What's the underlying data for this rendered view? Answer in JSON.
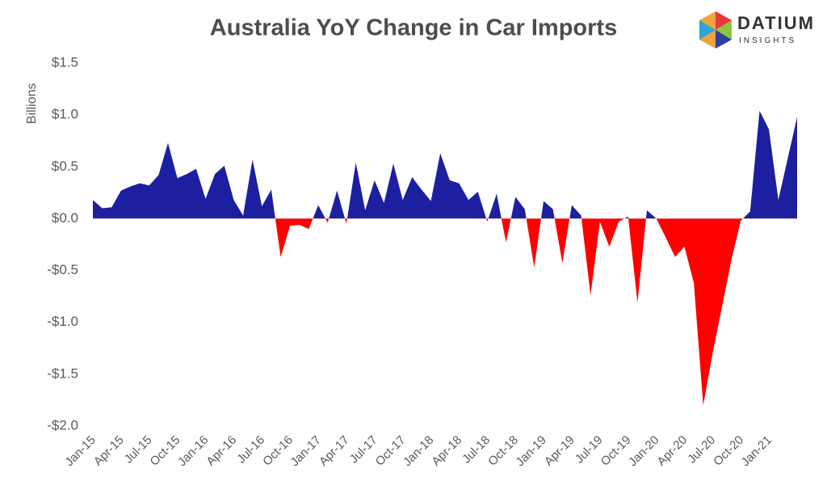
{
  "chart_data": {
    "type": "area",
    "title": "Australia YoY Change in Car Imports",
    "y_label": "Billions",
    "logo": {
      "name": "DATIUM",
      "tagline": "INSIGHTS"
    },
    "categories": [
      "Jan-15",
      null,
      null,
      "Apr-15",
      null,
      null,
      "Jul-15",
      null,
      null,
      "Oct-15",
      null,
      null,
      "Jan-16",
      null,
      null,
      "Apr-16",
      null,
      null,
      "Jul-16",
      null,
      null,
      "Oct-16",
      null,
      null,
      "Jan-17",
      null,
      null,
      "Apr-17",
      null,
      null,
      "Jul-17",
      null,
      null,
      "Oct-17",
      null,
      null,
      "Jan-18",
      null,
      null,
      "Apr-18",
      null,
      null,
      "Jul-18",
      null,
      null,
      "Oct-18",
      null,
      null,
      "Jan-19",
      null,
      null,
      "Apr-19",
      null,
      null,
      "Jul-19",
      null,
      null,
      "Oct-19",
      null,
      null,
      "Jan-20",
      null,
      null,
      "Apr-20",
      null,
      null,
      "Jul-20",
      null,
      null,
      "Oct-20",
      null,
      null,
      "Jan-21",
      null,
      null,
      null
    ],
    "values": [
      0.18,
      0.1,
      0.11,
      0.27,
      0.31,
      0.34,
      0.32,
      0.42,
      0.73,
      0.39,
      0.43,
      0.48,
      0.19,
      0.43,
      0.51,
      0.18,
      0.03,
      0.57,
      0.12,
      0.28,
      -0.37,
      -0.07,
      -0.06,
      -0.1,
      0.13,
      -0.04,
      0.27,
      -0.05,
      0.54,
      0.08,
      0.37,
      0.15,
      0.53,
      0.18,
      0.4,
      0.28,
      0.17,
      0.63,
      0.37,
      0.34,
      0.18,
      0.26,
      -0.03,
      0.24,
      -0.23,
      0.21,
      0.09,
      -0.47,
      0.17,
      0.09,
      -0.43,
      0.13,
      0.03,
      -0.74,
      -0.03,
      -0.27,
      -0.03,
      0.02,
      -0.81,
      0.08,
      0.0,
      -0.18,
      -0.37,
      -0.27,
      -0.62,
      -1.8,
      -1.3,
      -0.85,
      -0.4,
      -0.02,
      0.07,
      1.04,
      0.86,
      0.18,
      0.58,
      0.98
    ],
    "positive_color": "#1c1fa0",
    "negative_color": "#ff0000",
    "ylim": [
      -2.0,
      1.5
    ],
    "yticks": [
      {
        "value": -2.0,
        "label": "-$2.0"
      },
      {
        "value": -1.5,
        "label": "-$1.5"
      },
      {
        "value": -1.0,
        "label": "-$1.0"
      },
      {
        "value": -0.5,
        "label": "-$0.5"
      },
      {
        "value": 0.0,
        "label": "$0.0"
      },
      {
        "value": 0.5,
        "label": "$0.5"
      },
      {
        "value": 1.0,
        "label": "$1.0"
      },
      {
        "value": 1.5,
        "label": "$1.5"
      }
    ],
    "grid": false
  }
}
